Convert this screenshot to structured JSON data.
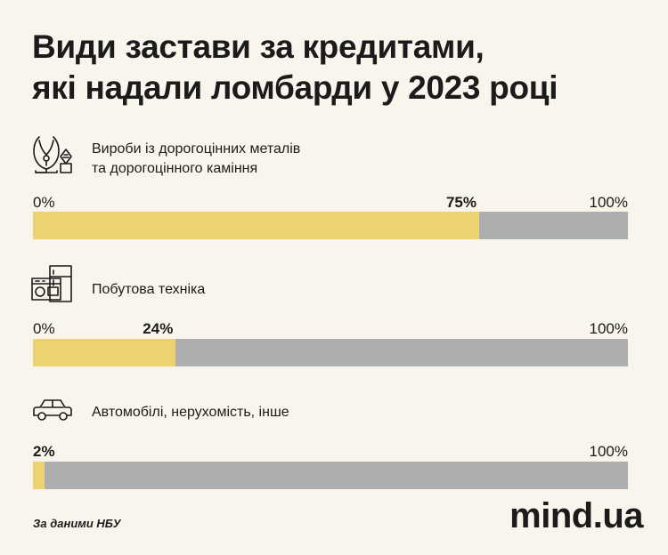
{
  "chart_data": {
    "type": "bar",
    "title": [
      "Види застави за кредитами,",
      "які надали ломбарди у 2023 році"
    ],
    "axis_min_label": "0%",
    "axis_max_label": "100%",
    "xlim": [
      0,
      100
    ],
    "series": [
      {
        "name": "",
        "categories": [
          "Вироби із дорогоцінних металів та дорогоцінного каміння",
          "Побутова техніка",
          "Автомобілі, нерухомість, інше"
        ],
        "values": [
          75,
          24,
          2
        ]
      }
    ],
    "categories": [
      {
        "label_lines": [
          "Вироби із дорогоцінних металів",
          "та дорогоцінного каміння"
        ],
        "value": 75,
        "value_label": "75%",
        "icon": "jewelry-icon"
      },
      {
        "label_lines": [
          "Побутова техніка"
        ],
        "value": 24,
        "value_label": "24%",
        "icon": "appliances-icon"
      },
      {
        "label_lines": [
          "Автомобілі, нерухомість, інше"
        ],
        "value": 2,
        "value_label": "2%",
        "icon": "car-icon"
      }
    ],
    "colors": {
      "fill": "#ecd36f",
      "track": "#adaeb0",
      "background": "#faf5ec"
    }
  },
  "footer": {
    "source": "За даними НБУ",
    "brand": "mind.ua"
  }
}
